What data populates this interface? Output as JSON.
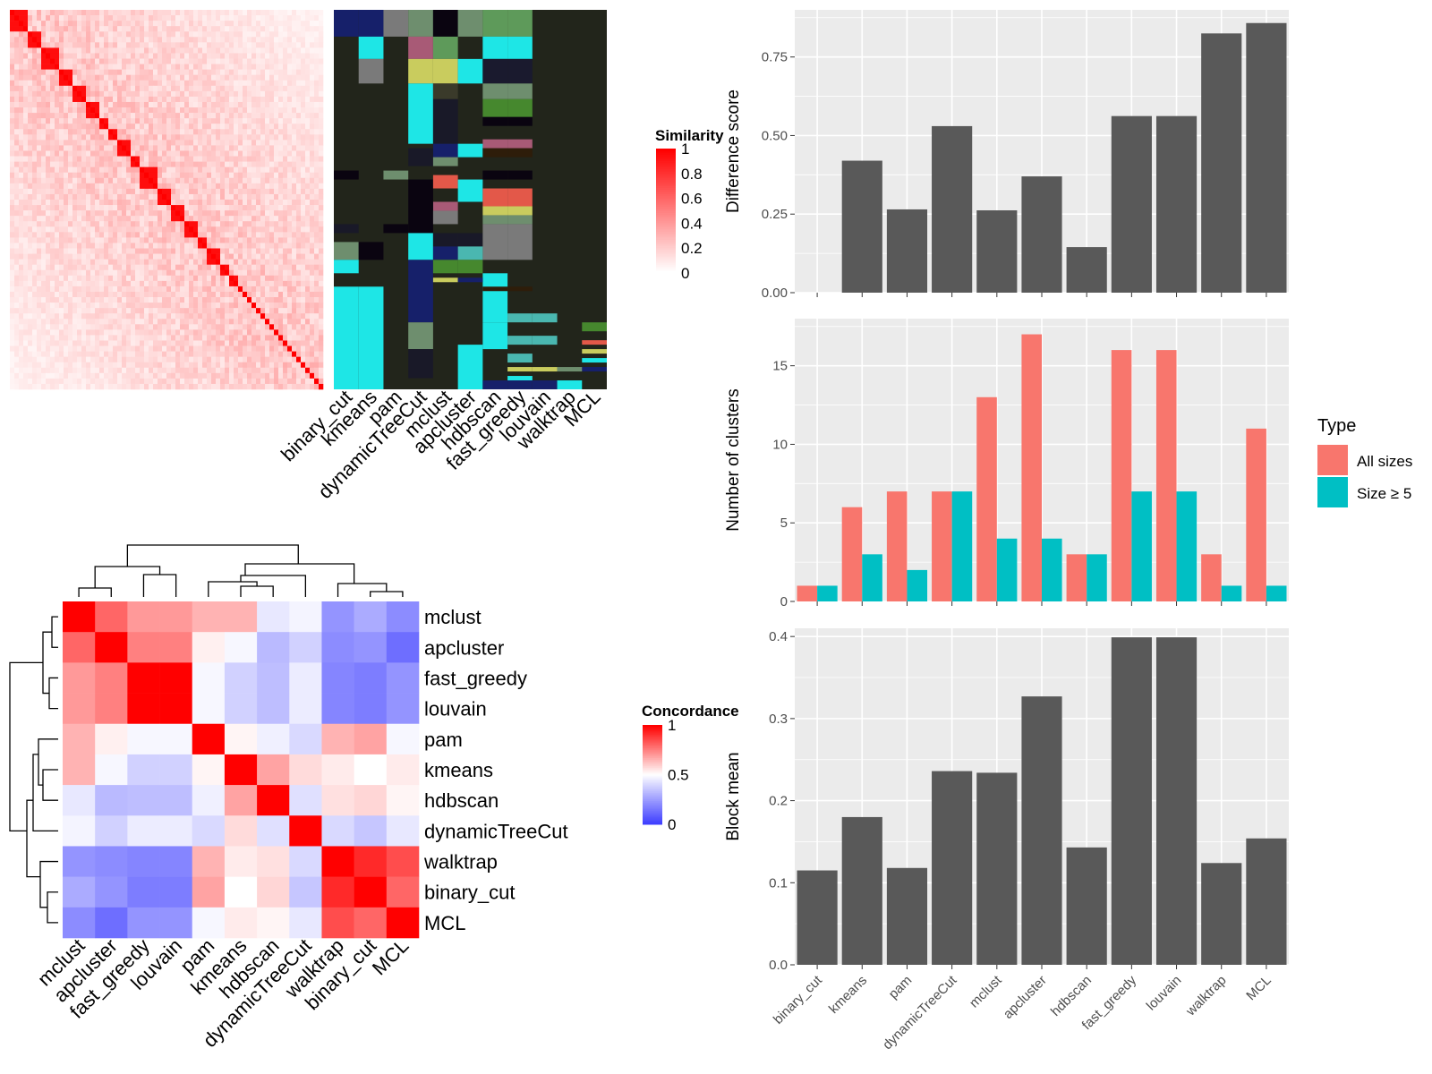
{
  "colors": {
    "panel_bg": "#ebebeb",
    "grid": "#ffffff",
    "bar": "#595959",
    "all_sizes": "#f8766d",
    "size_ge_5": "#00bfc4",
    "sim_low": "#ffffff",
    "sim_high": "#ff0000",
    "conc_low": "#0000ff",
    "conc_mid": "#ffffff",
    "conc_high": "#ff0000",
    "cluster_panel_bg": "#22251b"
  },
  "chart_data": [
    {
      "id": "similarity_heatmap",
      "type": "heatmap",
      "description_axis": "cells ordered by cluster, diagonal blocks of high similarity",
      "legend_title": "Similarity",
      "legend_ticks": [
        "1",
        "0.8",
        "0.6",
        "0.4",
        "0.2",
        "0"
      ],
      "legend_range": [
        0,
        1
      ]
    },
    {
      "id": "cluster_assignment_matrix",
      "type": "heatmap",
      "x_labels": [
        "binary_cut",
        "kmeans",
        "pam",
        "dynamicTreeCut",
        "mclust",
        "apcluster",
        "hdbscan",
        "fast_greedy",
        "louvain",
        "walktrap",
        "MCL"
      ]
    },
    {
      "id": "concordance_heatmap",
      "type": "heatmap",
      "legend_title": "Concordance",
      "legend_ticks": [
        "1",
        "0.5",
        "0"
      ],
      "legend_range": [
        0,
        1
      ],
      "row_labels": [
        "mclust",
        "apcluster",
        "fast_greedy",
        "louvain",
        "pam",
        "kmeans",
        "hdbscan",
        "dynamicTreeCut",
        "walktrap",
        "binary_cut",
        "MCL"
      ],
      "col_labels": [
        "mclust",
        "apcluster",
        "fast_greedy",
        "louvain",
        "pam",
        "kmeans",
        "hdbscan",
        "dynamicTreeCut",
        "walktrap",
        "binary_cut",
        "MCL"
      ],
      "values": [
        [
          1.0,
          0.8,
          0.7,
          0.7,
          0.65,
          0.65,
          0.44,
          0.47,
          0.22,
          0.28,
          0.2
        ],
        [
          0.8,
          1.0,
          0.75,
          0.75,
          0.53,
          0.48,
          0.32,
          0.38,
          0.2,
          0.22,
          0.12
        ],
        [
          0.7,
          0.75,
          1.0,
          1.0,
          0.48,
          0.38,
          0.33,
          0.45,
          0.18,
          0.16,
          0.22
        ],
        [
          0.7,
          0.75,
          1.0,
          1.0,
          0.48,
          0.38,
          0.33,
          0.45,
          0.18,
          0.16,
          0.22
        ],
        [
          0.65,
          0.53,
          0.48,
          0.48,
          1.0,
          0.52,
          0.46,
          0.4,
          0.65,
          0.68,
          0.48
        ],
        [
          0.65,
          0.48,
          0.38,
          0.38,
          0.52,
          1.0,
          0.68,
          0.57,
          0.54,
          0.5,
          0.54
        ],
        [
          0.44,
          0.32,
          0.33,
          0.33,
          0.46,
          0.68,
          1.0,
          0.42,
          0.56,
          0.58,
          0.52
        ],
        [
          0.47,
          0.38,
          0.45,
          0.45,
          0.4,
          0.57,
          0.42,
          1.0,
          0.4,
          0.35,
          0.44
        ],
        [
          0.22,
          0.2,
          0.18,
          0.18,
          0.65,
          0.54,
          0.56,
          0.4,
          1.0,
          0.92,
          0.85
        ],
        [
          0.28,
          0.22,
          0.16,
          0.16,
          0.68,
          0.5,
          0.58,
          0.35,
          0.92,
          1.0,
          0.8
        ],
        [
          0.2,
          0.12,
          0.22,
          0.22,
          0.48,
          0.54,
          0.52,
          0.44,
          0.85,
          0.8,
          1.0
        ]
      ]
    },
    {
      "id": "difference_score",
      "type": "bar",
      "categories": [
        "binary_cut",
        "kmeans",
        "pam",
        "dynamicTreeCut",
        "mclust",
        "apcluster",
        "hdbscan",
        "fast_greedy",
        "louvain",
        "walktrap",
        "MCL"
      ],
      "values": [
        0.0,
        0.42,
        0.265,
        0.53,
        0.262,
        0.37,
        0.145,
        0.562,
        0.562,
        0.825,
        0.858
      ],
      "ylabel": "Difference score",
      "ylim": [
        0,
        0.9
      ],
      "yticks": [
        "0.00",
        "0.25",
        "0.50",
        "0.75"
      ],
      "grid": true
    },
    {
      "id": "number_of_clusters",
      "type": "bar",
      "categories": [
        "binary_cut",
        "kmeans",
        "pam",
        "dynamicTreeCut",
        "mclust",
        "apcluster",
        "hdbscan",
        "fast_greedy",
        "louvain",
        "walktrap",
        "MCL"
      ],
      "series": [
        {
          "name": "All sizes",
          "values": [
            1,
            6,
            7,
            7,
            13,
            17,
            3,
            16,
            16,
            3,
            11
          ]
        },
        {
          "name": "Size ≥ 5",
          "values": [
            1,
            3,
            2,
            7,
            4,
            4,
            3,
            7,
            7,
            1,
            1
          ]
        }
      ],
      "ylabel": "Number of clusters",
      "ylim": [
        0,
        18
      ],
      "yticks": [
        "0",
        "5",
        "10",
        "15"
      ],
      "legend_title": "Type",
      "legend_position": "right",
      "grid": true
    },
    {
      "id": "block_mean",
      "type": "bar",
      "categories": [
        "binary_cut",
        "kmeans",
        "pam",
        "dynamicTreeCut",
        "mclust",
        "apcluster",
        "hdbscan",
        "fast_greedy",
        "louvain",
        "walktrap",
        "MCL"
      ],
      "values": [
        0.115,
        0.18,
        0.118,
        0.236,
        0.234,
        0.327,
        0.143,
        0.399,
        0.399,
        0.124,
        0.154
      ],
      "ylabel": "Block mean",
      "ylim": [
        0,
        0.41
      ],
      "yticks": [
        "0.0",
        "0.1",
        "0.2",
        "0.3",
        "0.4"
      ],
      "grid": true
    }
  ]
}
